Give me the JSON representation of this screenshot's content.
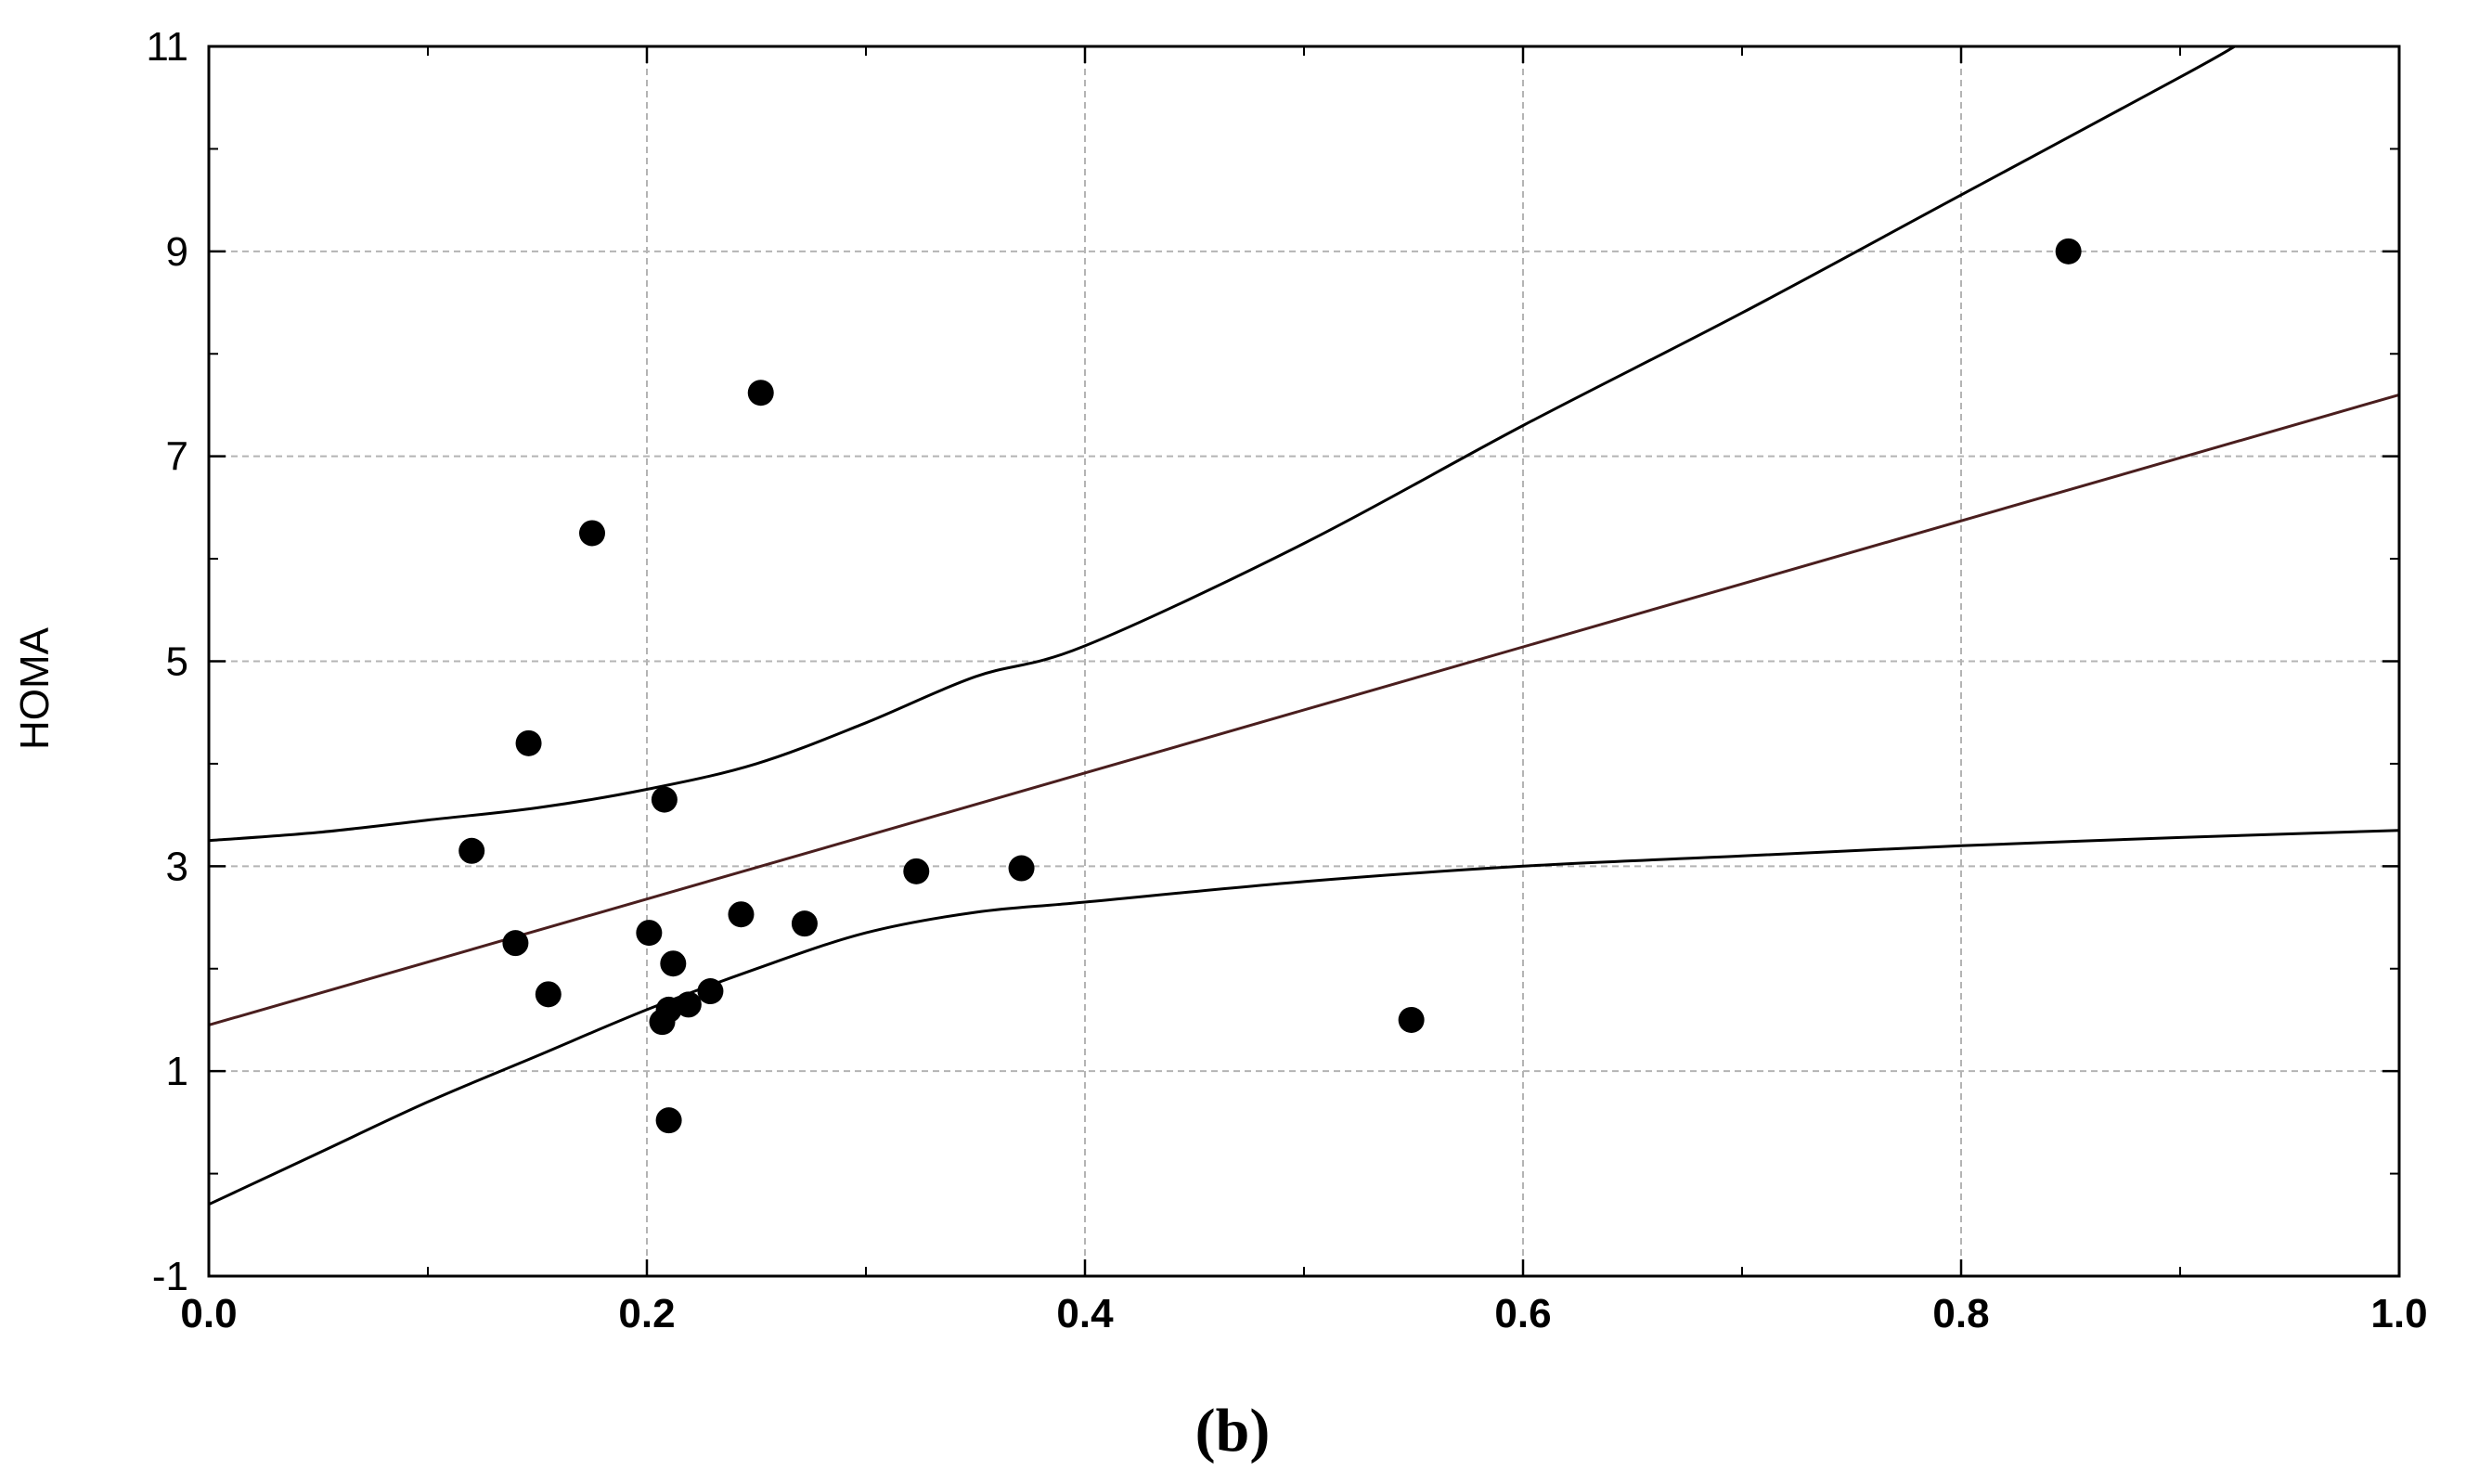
{
  "chart_data": {
    "type": "scatter",
    "title": "",
    "xlabel": "",
    "ylabel": "HOMA",
    "panel_label": "(b)",
    "xlim": [
      0.0,
      1.0
    ],
    "ylim": [
      -1,
      11
    ],
    "xticks": [
      0.0,
      0.2,
      0.4,
      0.6,
      0.8,
      1.0
    ],
    "xtick_labels": [
      "0.0",
      "0.2",
      "0.4",
      "0.6",
      "0.8",
      "1.0"
    ],
    "yticks": [
      -1,
      1,
      3,
      5,
      7,
      9,
      11
    ],
    "ytick_labels": [
      "-1",
      "1",
      "3",
      "5",
      "7",
      "9",
      "11"
    ],
    "grid": true,
    "minor_ticks": true,
    "points": [
      {
        "x": 0.12,
        "y": 3.15
      },
      {
        "x": 0.14,
        "y": 2.25
      },
      {
        "x": 0.146,
        "y": 4.2
      },
      {
        "x": 0.155,
        "y": 1.75
      },
      {
        "x": 0.175,
        "y": 6.25
      },
      {
        "x": 0.201,
        "y": 2.35
      },
      {
        "x": 0.207,
        "y": 1.48
      },
      {
        "x": 0.208,
        "y": 3.65
      },
      {
        "x": 0.21,
        "y": 1.6
      },
      {
        "x": 0.21,
        "y": 0.52
      },
      {
        "x": 0.212,
        "y": 2.05
      },
      {
        "x": 0.219,
        "y": 1.65
      },
      {
        "x": 0.229,
        "y": 1.78
      },
      {
        "x": 0.243,
        "y": 2.53
      },
      {
        "x": 0.252,
        "y": 7.62
      },
      {
        "x": 0.272,
        "y": 2.44
      },
      {
        "x": 0.323,
        "y": 2.95
      },
      {
        "x": 0.371,
        "y": 2.98
      },
      {
        "x": 0.549,
        "y": 1.5
      },
      {
        "x": 0.849,
        "y": 9.0
      }
    ],
    "regression_line": {
      "intercept": 1.45,
      "slope": 6.15,
      "color": "#4a1e1e"
    },
    "confidence_band": {
      "color": "#000000",
      "upper": [
        {
          "x": 0.0,
          "y": 3.25
        },
        {
          "x": 0.05,
          "y": 3.33
        },
        {
          "x": 0.1,
          "y": 3.45
        },
        {
          "x": 0.15,
          "y": 3.57
        },
        {
          "x": 0.2,
          "y": 3.75
        },
        {
          "x": 0.25,
          "y": 4.0
        },
        {
          "x": 0.3,
          "y": 4.4
        },
        {
          "x": 0.35,
          "y": 4.85
        },
        {
          "x": 0.4,
          "y": 5.15
        },
        {
          "x": 0.5,
          "y": 6.15
        },
        {
          "x": 0.6,
          "y": 7.3
        },
        {
          "x": 0.7,
          "y": 8.4
        },
        {
          "x": 0.8,
          "y": 9.55
        },
        {
          "x": 0.9,
          "y": 10.7
        },
        {
          "x": 0.925,
          "y": 11.0
        }
      ],
      "lower": [
        {
          "x": 0.0,
          "y": -0.3
        },
        {
          "x": 0.05,
          "y": 0.2
        },
        {
          "x": 0.1,
          "y": 0.7
        },
        {
          "x": 0.15,
          "y": 1.15
        },
        {
          "x": 0.2,
          "y": 1.6
        },
        {
          "x": 0.25,
          "y": 2.0
        },
        {
          "x": 0.3,
          "y": 2.35
        },
        {
          "x": 0.35,
          "y": 2.55
        },
        {
          "x": 0.4,
          "y": 2.65
        },
        {
          "x": 0.5,
          "y": 2.85
        },
        {
          "x": 0.6,
          "y": 3.0
        },
        {
          "x": 0.7,
          "y": 3.1
        },
        {
          "x": 0.8,
          "y": 3.2
        },
        {
          "x": 0.9,
          "y": 3.28
        },
        {
          "x": 1.0,
          "y": 3.35
        }
      ]
    }
  }
}
